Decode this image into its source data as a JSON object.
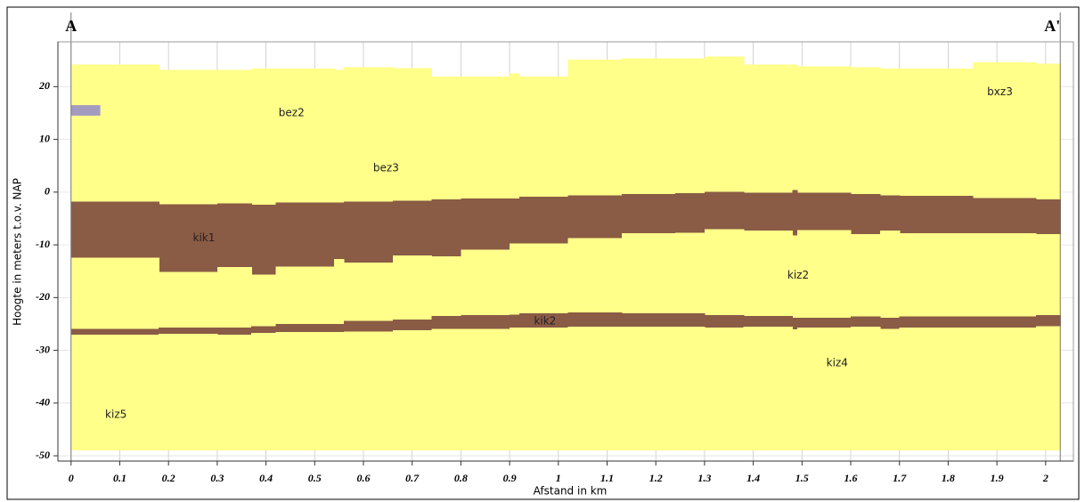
{
  "chart_data": {
    "type": "cross-section",
    "xlabel": "Afstand in km",
    "ylabel": "Hoogte in meters t.o.v. NAP",
    "xlim": [
      -0.027,
      2.057
    ],
    "ylim": [
      -51,
      28.5
    ],
    "xticks": [
      0,
      0.1,
      0.2,
      0.3,
      0.4,
      0.5,
      0.6,
      0.7,
      0.8,
      0.9,
      1,
      1.1,
      1.2,
      1.3,
      1.4,
      1.5,
      1.6,
      1.7,
      1.8,
      1.9,
      2
    ],
    "yticks": [
      -50,
      -40,
      -30,
      -20,
      -10,
      0,
      10,
      20
    ],
    "grid": true,
    "x_edges": [
      0,
      0.18,
      0.3,
      0.37,
      0.42,
      0.54,
      0.56,
      0.66,
      0.74,
      0.8,
      0.9,
      0.92,
      1.02,
      1.13,
      1.24,
      1.3,
      1.38,
      1.48,
      1.49,
      1.6,
      1.66,
      1.7,
      1.85,
      1.98,
      2.03
    ],
    "boundaries": [
      [
        24.2,
        23.2,
        23.2,
        23.4,
        23.4,
        23.2,
        23.7,
        23.5,
        21.9,
        21.9,
        22.5,
        21.9,
        25.1,
        25.4,
        25.4,
        25.7,
        24.2,
        24.2,
        23.9,
        23.7,
        23.4,
        23.4,
        24.6,
        24.4
      ],
      [
        -1.8,
        -2.3,
        -2.1,
        -2.4,
        -2,
        -2,
        -1.8,
        -1.6,
        -1.4,
        -1.2,
        -1.2,
        -0.9,
        -0.6,
        -0.4,
        -0.2,
        0.1,
        -0.1,
        0.4,
        -0.1,
        -0.4,
        -0.6,
        -0.7,
        -1.1,
        -1.4
      ],
      [
        -12.4,
        -15.1,
        -14.2,
        -15.6,
        -14.1,
        -12.7,
        -13.4,
        -12,
        -12.2,
        -10.9,
        -9.7,
        -9.7,
        -8.7,
        -7.8,
        -7.7,
        -7,
        -7.3,
        -8.2,
        -7.2,
        -8,
        -7.3,
        -7.8,
        -7.8,
        -8
      ],
      [
        -25.9,
        -25.7,
        -25.7,
        -25.4,
        -25,
        -25,
        -24.4,
        -24.2,
        -23.5,
        -23.3,
        -23.2,
        -23,
        -22.8,
        -23,
        -23,
        -23.3,
        -23.5,
        -23.8,
        -23.8,
        -23.6,
        -23.8,
        -23.6,
        -23.6,
        -23.3
      ],
      [
        -27,
        -26.9,
        -27,
        -26.7,
        -26.5,
        -26.5,
        -26.4,
        -26.2,
        -25.9,
        -25.9,
        -25.7,
        -25.7,
        -25.5,
        -25.5,
        -25.5,
        -25.7,
        -25.5,
        -26,
        -25.7,
        -25.5,
        -25.9,
        -25.7,
        -25.7,
        -25.4
      ],
      [
        -49,
        -49,
        -49,
        -49,
        -49,
        -49,
        -49,
        -49,
        -49,
        -49,
        -49,
        -49,
        -49,
        -49,
        -49,
        -49,
        -49,
        -49,
        -49,
        -49,
        -49,
        -49,
        -49,
        -49
      ]
    ],
    "layer_colors": [
      "#ffff8a",
      "#8a5b45",
      "#ffff8a",
      "#8a5b45",
      "#ffff8a"
    ],
    "blocks": [
      {
        "x": [
          0,
          0.06
        ],
        "y": [
          14.5,
          16.5
        ],
        "color": "#a49cc0"
      }
    ],
    "annotations": [
      {
        "text": "bez2",
        "x": 0.426,
        "y": 15
      },
      {
        "text": "bez3",
        "x": 0.62,
        "y": 4.5
      },
      {
        "text": "kik1",
        "x": 0.25,
        "y": -8.7
      },
      {
        "text": "kiz2",
        "x": 1.47,
        "y": -15.8
      },
      {
        "text": "kik2",
        "x": 0.95,
        "y": -24.5
      },
      {
        "text": "kiz4",
        "x": 1.55,
        "y": -32.4
      },
      {
        "text": "kiz5",
        "x": 0.07,
        "y": -42.2
      },
      {
        "text": "bxz3",
        "x": 1.88,
        "y": 19
      }
    ],
    "markers": [
      {
        "label": "A",
        "x": 0
      },
      {
        "label": "A'",
        "x": 2.03
      }
    ]
  }
}
